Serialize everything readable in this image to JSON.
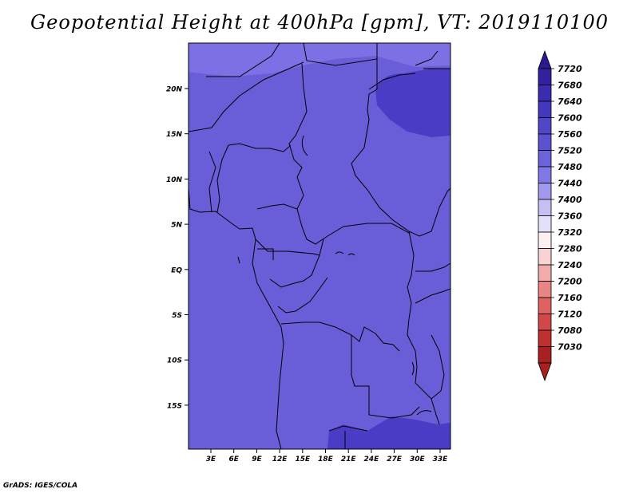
{
  "title": "Geopotential Height at 400hPa [gpm], VT: 2019110100",
  "credit": "GrADS: IGES/COLA",
  "map": {
    "lat_labels": [
      "20N",
      "15N",
      "10N",
      "5N",
      "EQ",
      "5S",
      "10S",
      "15S"
    ],
    "lon_labels": [
      "3E",
      "6E",
      "9E",
      "12E",
      "15E",
      "18E",
      "21E",
      "24E",
      "27E",
      "30E",
      "33E"
    ]
  },
  "colorbar": {
    "levels": [
      "7720",
      "7680",
      "7640",
      "7600",
      "7560",
      "7520",
      "7480",
      "7440",
      "7400",
      "7360",
      "7320",
      "7280",
      "7240",
      "7200",
      "7160",
      "7120",
      "7080",
      "7030"
    ],
    "colors": [
      "#3322a0",
      "#3a2cb0",
      "#4437c0",
      "#5046c6",
      "#5c52cf",
      "#6c62da",
      "#8078e4",
      "#a099ee",
      "#c4c0f4",
      "#e4e2fa",
      "#fdf0f0",
      "#f9d2d2",
      "#f2aaaa",
      "#e98585",
      "#df6262",
      "#d24848",
      "#bf3030",
      "#a82020"
    ],
    "top_arrow_color": "#2a1a90",
    "bottom_arrow_color": "#a82020"
  },
  "field_colors": {
    "base": "#6a5ed8",
    "north_strip": "#7c70e4",
    "high_region": "#4a3cc4",
    "low_region": "#4a3cc4"
  }
}
